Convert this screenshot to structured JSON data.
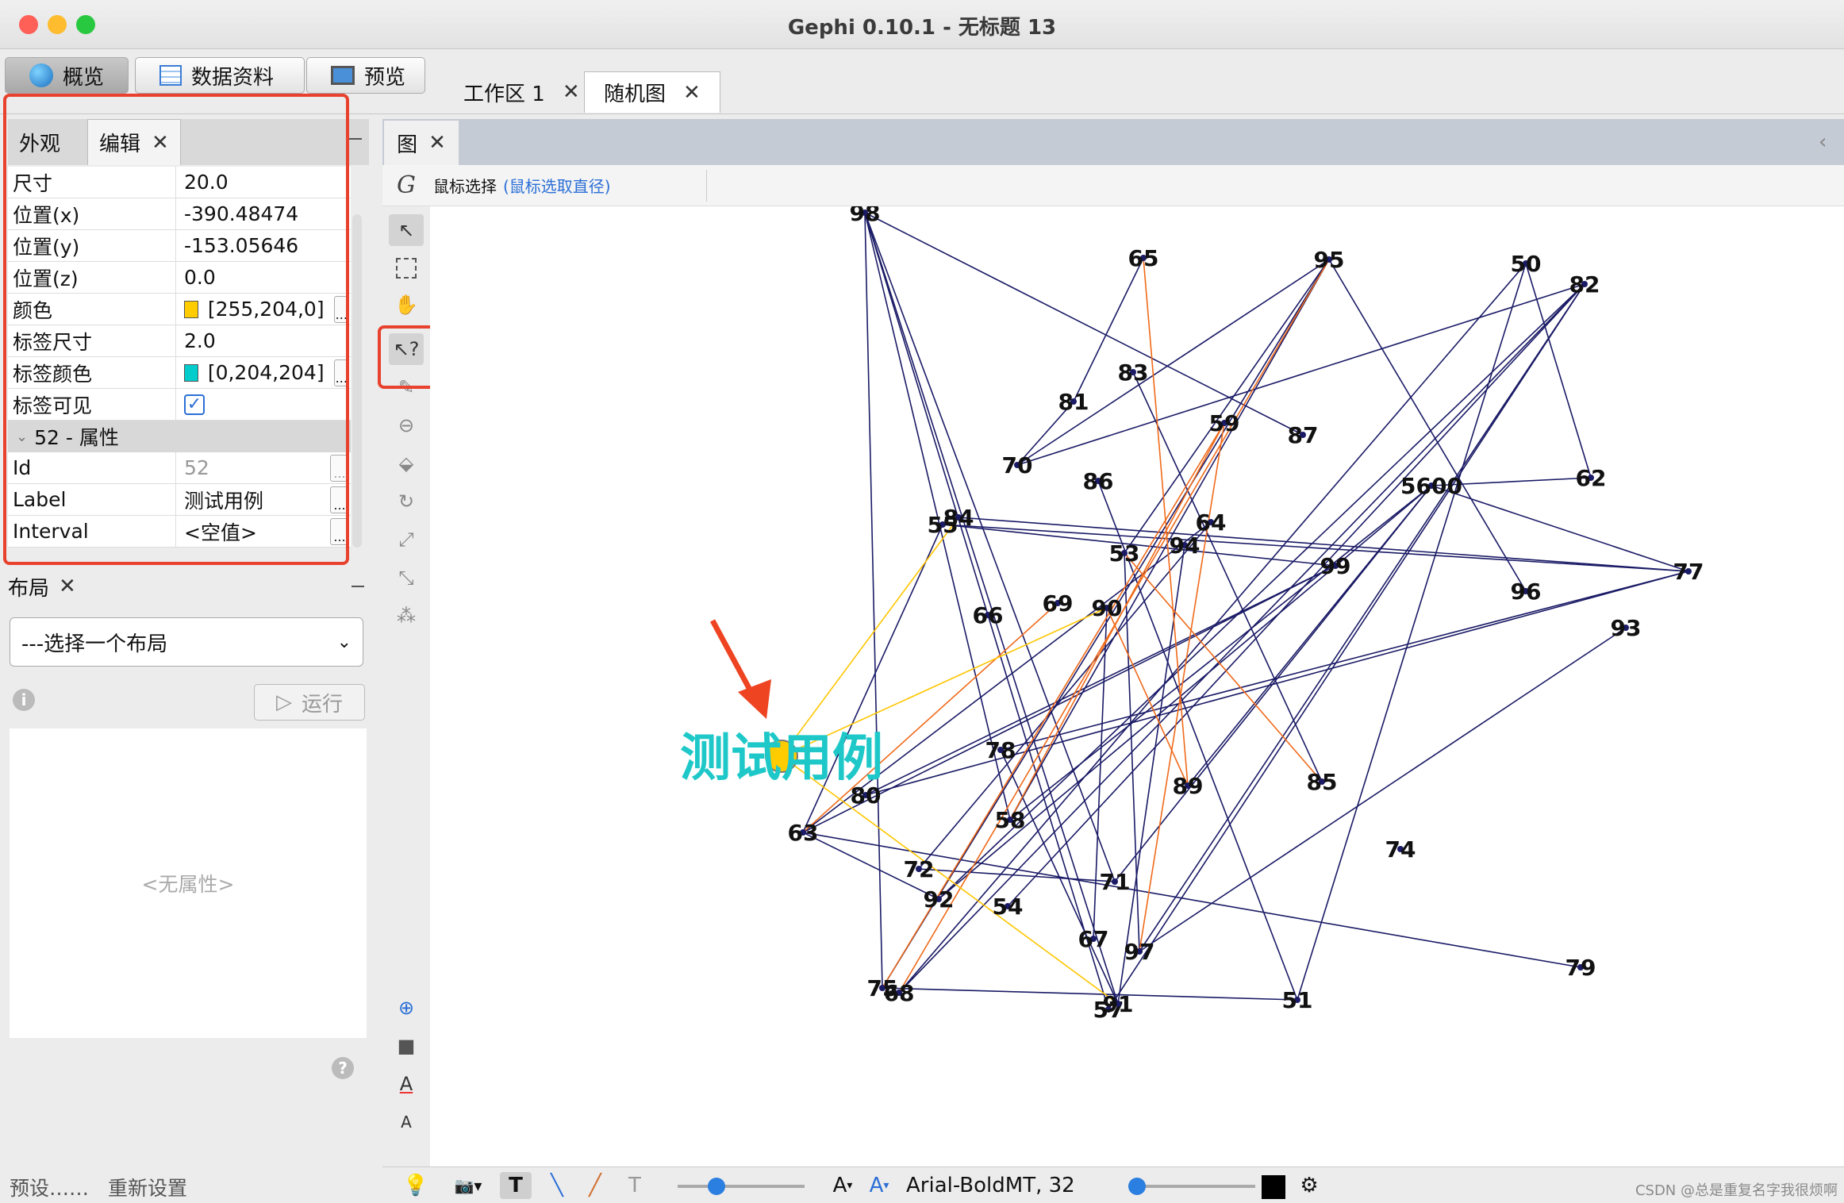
{
  "window": {
    "title": "Gephi 0.10.1 - 无标题 13"
  },
  "modes": [
    {
      "label": "概览",
      "icon": "globe-icon"
    },
    {
      "label": "数据资料",
      "icon": "table-icon"
    },
    {
      "label": "预览",
      "icon": "monitor-icon"
    }
  ],
  "workspaces": [
    {
      "label": "工作区 1"
    },
    {
      "label": "随机图"
    }
  ],
  "left_tabs": {
    "appearance": "外观",
    "edit": "编辑"
  },
  "properties": [
    {
      "key": "尺寸",
      "value": "20.0"
    },
    {
      "key": "位置(x)",
      "value": "-390.48474"
    },
    {
      "key": "位置(y)",
      "value": "-153.05646"
    },
    {
      "key": "位置(z)",
      "value": "0.0"
    },
    {
      "key": "颜色",
      "value": "[255,204,0]",
      "swatch": "#ffcc00"
    },
    {
      "key": "标签尺寸",
      "value": "2.0"
    },
    {
      "key": "标签颜色",
      "value": "[0,204,204]",
      "swatch": "#00cccc"
    },
    {
      "key": "标签可见",
      "value": "✓"
    }
  ],
  "attributes_section": "52 - 属性",
  "attributes": [
    {
      "key": "Id",
      "value": "52"
    },
    {
      "key": "Label",
      "value": "测试用例"
    },
    {
      "key": "Interval",
      "value": "<空值>"
    }
  ],
  "layout": {
    "header": "布局",
    "select": "---选择一个布局",
    "run": "运行",
    "no_properties": "<无属性>",
    "presets": "预设……",
    "reset": "重新设置"
  },
  "graph": {
    "tab": "图",
    "select_mode": "鼠标选择",
    "select_hint": "(鼠标选取直径)",
    "highlight_label": "测试用例",
    "highlight_color": "#1fc8c8",
    "node_label_color": "#111111",
    "edge_color": "#1a1a66",
    "nodes": [
      {
        "label": "98"
      },
      {
        "label": "65"
      },
      {
        "label": "95"
      },
      {
        "label": "50"
      },
      {
        "label": "82"
      },
      {
        "label": "83"
      },
      {
        "label": "81"
      },
      {
        "label": "59"
      },
      {
        "label": "87"
      },
      {
        "label": "70"
      },
      {
        "label": "86"
      },
      {
        "label": "5600"
      },
      {
        "label": "62"
      },
      {
        "label": "55"
      },
      {
        "label": "84"
      },
      {
        "label": "64"
      },
      {
        "label": "53"
      },
      {
        "label": "94"
      },
      {
        "label": "99"
      },
      {
        "label": "77"
      },
      {
        "label": "96"
      },
      {
        "label": "93"
      },
      {
        "label": "66"
      },
      {
        "label": "69"
      },
      {
        "label": "90"
      },
      {
        "label": "78"
      },
      {
        "label": "80"
      },
      {
        "label": "89"
      },
      {
        "label": "85"
      },
      {
        "label": "58"
      },
      {
        "label": "63"
      },
      {
        "label": "74"
      },
      {
        "label": "72"
      },
      {
        "label": "92"
      },
      {
        "label": "71"
      },
      {
        "label": "54"
      },
      {
        "label": "67"
      },
      {
        "label": "97"
      },
      {
        "label": "79"
      },
      {
        "label": "75"
      },
      {
        "label": "68"
      },
      {
        "label": "57"
      },
      {
        "label": "91"
      },
      {
        "label": "51"
      }
    ]
  },
  "bottom_toolbar": {
    "font": "Arial-BoldMT, 32"
  },
  "watermark": "CSDN @总是重复名字我很烦啊"
}
